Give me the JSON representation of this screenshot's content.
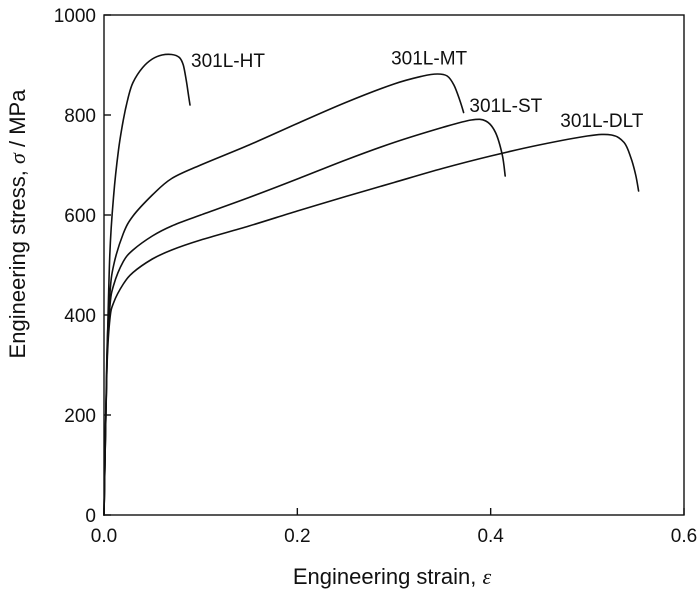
{
  "chart_data": {
    "type": "line",
    "title": "",
    "xlabel": {
      "text": "Engineering strain, ",
      "symbol": "ε"
    },
    "ylabel": {
      "text": "Engineering stress, ",
      "symbol": "σ",
      "unit": " / MPa"
    },
    "xlim": [
      0.0,
      0.6
    ],
    "ylim": [
      0,
      1000
    ],
    "xticks": [
      "0.0",
      "0.2",
      "0.4",
      "0.6"
    ],
    "xtick_values": [
      0.0,
      0.2,
      0.4,
      0.6
    ],
    "yticks": [
      "0",
      "200",
      "400",
      "600",
      "800",
      "1000"
    ],
    "ytick_values": [
      0,
      200,
      400,
      600,
      800,
      1000
    ],
    "grid": false,
    "legend": "none",
    "line_color": "#111111",
    "series": [
      {
        "name": "301L-HT",
        "x": [
          0,
          0.003,
          0.006,
          0.01,
          0.015,
          0.02,
          0.025,
          0.03,
          0.04,
          0.05,
          0.06,
          0.07,
          0.078,
          0.082,
          0.085,
          0.087,
          0.089
        ],
        "y": [
          0,
          300,
          520,
          640,
          730,
          790,
          835,
          865,
          895,
          912,
          920,
          921,
          915,
          900,
          870,
          845,
          820
        ]
      },
      {
        "name": "301L-MT",
        "x": [
          0,
          0.003,
          0.006,
          0.01,
          0.02,
          0.03,
          0.05,
          0.07,
          0.1,
          0.15,
          0.2,
          0.25,
          0.3,
          0.33,
          0.345,
          0.355,
          0.362,
          0.368,
          0.372
        ],
        "y": [
          0,
          320,
          440,
          500,
          563,
          598,
          640,
          673,
          700,
          740,
          783,
          825,
          862,
          878,
          882,
          878,
          860,
          830,
          805
        ]
      },
      {
        "name": "301L-ST",
        "x": [
          0,
          0.003,
          0.006,
          0.01,
          0.02,
          0.03,
          0.05,
          0.07,
          0.1,
          0.15,
          0.2,
          0.25,
          0.3,
          0.35,
          0.38,
          0.395,
          0.405,
          0.412,
          0.415
        ],
        "y": [
          0,
          300,
          415,
          460,
          507,
          530,
          558,
          578,
          600,
          635,
          672,
          710,
          745,
          775,
          790,
          788,
          765,
          720,
          678
        ]
      },
      {
        "name": "301L-DLT",
        "x": [
          0,
          0.003,
          0.006,
          0.01,
          0.02,
          0.03,
          0.05,
          0.07,
          0.1,
          0.15,
          0.2,
          0.25,
          0.3,
          0.35,
          0.4,
          0.45,
          0.5,
          0.525,
          0.538,
          0.545,
          0.55,
          0.553
        ],
        "y": [
          0,
          290,
          390,
          425,
          462,
          485,
          512,
          530,
          550,
          578,
          608,
          637,
          665,
          693,
          718,
          740,
          758,
          760,
          745,
          715,
          680,
          648
        ]
      }
    ],
    "annotations": [
      {
        "text": "301L-HT",
        "x": 0.09,
        "y": 910
      },
      {
        "text": "301L-MT",
        "x": 0.297,
        "y": 915
      },
      {
        "text": "301L-ST",
        "x": 0.378,
        "y": 820
      },
      {
        "text": "301L-DLT",
        "x": 0.472,
        "y": 790
      }
    ]
  }
}
